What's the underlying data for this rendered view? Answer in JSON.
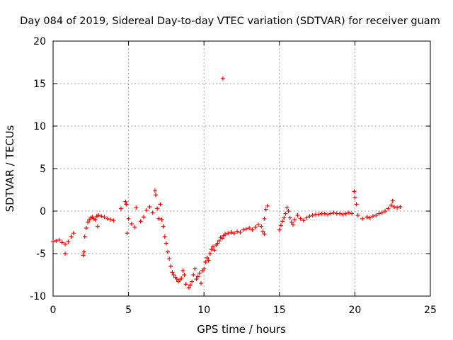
{
  "chart_data": {
    "type": "scatter",
    "title": "Day 084 of 2019, Sidereal Day-to-day VTEC variation (SDTVAR) for receiver guam",
    "xlabel": "GPS time / hours",
    "ylabel": "SDTVAR / TECUs",
    "xlim": [
      0,
      25
    ],
    "ylim": [
      -10,
      20
    ],
    "xticks": [
      0,
      5,
      10,
      15,
      20,
      25
    ],
    "yticks": [
      -10,
      -5,
      0,
      5,
      10,
      15,
      20
    ],
    "grid": true,
    "marker": "+",
    "color": "#ff0000",
    "series": [
      {
        "name": "SDTVAR",
        "x": [
          0.0,
          0.2,
          0.4,
          0.6,
          0.8,
          1.0,
          1.2,
          1.35,
          0.8,
          2.0,
          2.05,
          2.1,
          2.2,
          2.3,
          2.4,
          2.5,
          2.6,
          2.7,
          2.8,
          2.9,
          3.0,
          3.2,
          3.4,
          3.6,
          3.8,
          4.0,
          2.95,
          4.5,
          4.8,
          4.85,
          4.9,
          5.0,
          5.2,
          5.4,
          5.5,
          5.8,
          6.0,
          6.2,
          6.4,
          6.6,
          6.75,
          6.8,
          6.9,
          7.0,
          7.1,
          7.2,
          7.3,
          7.4,
          7.5,
          7.6,
          7.7,
          7.8,
          7.9,
          8.0,
          8.1,
          8.2,
          8.3,
          8.4,
          8.5,
          8.6,
          8.7,
          8.8,
          9.0,
          9.1,
          9.2,
          9.3,
          9.4,
          9.5,
          9.6,
          9.7,
          9.8,
          9.9,
          10.0,
          10.1,
          10.2,
          10.3,
          10.4,
          10.5,
          10.6,
          10.7,
          10.8,
          10.9,
          11.0,
          11.1,
          11.2,
          11.3,
          11.4,
          11.6,
          11.8,
          12.0,
          12.2,
          12.4,
          12.6,
          12.8,
          13.0,
          13.2,
          13.4,
          13.6,
          13.8,
          14.0,
          14.1,
          14.2,
          13.9,
          14.0,
          11.25,
          15.0,
          15.1,
          15.2,
          15.3,
          15.4,
          15.5,
          15.6,
          15.7,
          15.8,
          15.9,
          16.0,
          16.2,
          16.4,
          16.6,
          16.8,
          17.0,
          17.2,
          17.4,
          17.6,
          17.8,
          18.0,
          18.2,
          18.4,
          18.6,
          18.8,
          19.0,
          19.2,
          19.4,
          19.6,
          19.8,
          19.95,
          20.0,
          20.1,
          20.2,
          20.5,
          20.8,
          21.0,
          21.2,
          21.4,
          21.6,
          21.8,
          22.0,
          22.2,
          22.4,
          22.5,
          22.6,
          22.8,
          23.0
        ],
        "y": [
          -3.6,
          -3.5,
          -3.4,
          -3.7,
          -3.9,
          -3.6,
          -3.0,
          -2.6,
          -5.0,
          -5.2,
          -4.8,
          -3.0,
          -2.0,
          -1.3,
          -1.0,
          -0.8,
          -0.7,
          -0.9,
          -1.0,
          -0.6,
          -0.5,
          -0.6,
          -0.7,
          -0.9,
          -1.0,
          -1.1,
          -1.8,
          0.3,
          1.1,
          0.8,
          -2.6,
          -0.9,
          -1.5,
          -1.9,
          0.4,
          -1.2,
          -0.7,
          0.1,
          0.5,
          -0.2,
          2.4,
          1.9,
          0.3,
          -0.9,
          0.8,
          -1.0,
          -1.8,
          -3.0,
          -3.8,
          -4.8,
          -5.6,
          -6.5,
          -7.2,
          -7.5,
          -7.8,
          -8.0,
          -8.3,
          -8.1,
          -7.9,
          -7.0,
          -7.5,
          -8.6,
          -9.0,
          -8.7,
          -8.3,
          -7.5,
          -6.8,
          -8.0,
          -7.7,
          -7.3,
          -8.5,
          -7.0,
          -6.8,
          -6.0,
          -5.5,
          -5.8,
          -5.0,
          -4.5,
          -4.2,
          -4.6,
          -4.0,
          -3.8,
          -3.5,
          -3.1,
          -3.2,
          -2.9,
          -2.7,
          -2.6,
          -2.5,
          -2.6,
          -2.4,
          -2.5,
          -2.2,
          -2.1,
          -2.0,
          -2.2,
          -1.9,
          -1.6,
          -1.8,
          -0.9,
          0.2,
          0.6,
          -2.4,
          -2.7,
          15.6,
          -2.2,
          -1.7,
          -1.2,
          -0.8,
          -0.3,
          0.4,
          0.0,
          -0.8,
          -1.3,
          -1.6,
          -1.0,
          -0.5,
          -0.9,
          -1.1,
          -0.8,
          -0.6,
          -0.5,
          -0.4,
          -0.4,
          -0.3,
          -0.3,
          -0.4,
          -0.3,
          -0.2,
          -0.3,
          -0.3,
          -0.4,
          -0.3,
          -0.2,
          -0.3,
          2.3,
          1.6,
          0.8,
          -0.5,
          -0.9,
          -0.7,
          -0.8,
          -0.6,
          -0.5,
          -0.3,
          -0.2,
          0.0,
          0.3,
          0.7,
          1.2,
          0.5,
          0.4,
          0.5
        ]
      }
    ]
  }
}
